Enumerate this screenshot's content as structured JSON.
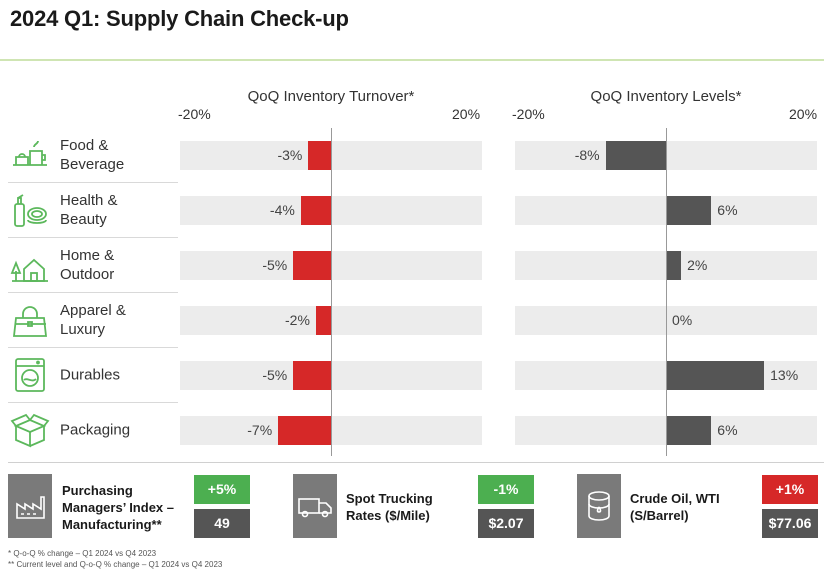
{
  "title": "2024 Q1: Supply Chain Check-up",
  "colors": {
    "negative": "#d62828",
    "positive": "#555555",
    "neutral_bar": "#555555",
    "track": "#ececec",
    "green": "#4caf50",
    "accent_rule": "#cfe5b3",
    "icon_stroke": "#5cb85c"
  },
  "categories": [
    {
      "label": "Food &\nBeverage",
      "icon": "food-beverage-icon"
    },
    {
      "label": "Health &\nBeauty",
      "icon": "health-beauty-icon"
    },
    {
      "label": "Home &\nOutdoor",
      "icon": "home-outdoor-icon"
    },
    {
      "label": "Apparel &\nLuxury",
      "icon": "apparel-luxury-icon"
    },
    {
      "label": "Durables",
      "icon": "durables-icon"
    },
    {
      "label": "Packaging",
      "icon": "packaging-icon"
    }
  ],
  "chart_data": [
    {
      "type": "bar",
      "orientation": "horizontal",
      "title": "QoQ Inventory Turnover*",
      "xlim": [
        -20,
        20
      ],
      "tick_labels": [
        "-20%",
        "20%"
      ],
      "categories": [
        "Food & Beverage",
        "Health & Beauty",
        "Home & Outdoor",
        "Apparel & Luxury",
        "Durables",
        "Packaging"
      ],
      "values": [
        -3,
        -4,
        -5,
        -2,
        -5,
        -7
      ],
      "data_labels": [
        "-3%",
        "-4%",
        "-5%",
        "-2%",
        "-5%",
        "-7%"
      ],
      "bar_color": "#d62828"
    },
    {
      "type": "bar",
      "orientation": "horizontal",
      "title": "QoQ Inventory Levels*",
      "xlim": [
        -20,
        20
      ],
      "tick_labels": [
        "-20%",
        "20%"
      ],
      "categories": [
        "Food & Beverage",
        "Health & Beauty",
        "Home & Outdoor",
        "Apparel & Luxury",
        "Durables",
        "Packaging"
      ],
      "values": [
        -8,
        6,
        2,
        0,
        13,
        6
      ],
      "data_labels": [
        "-8%",
        "6%",
        "2%",
        "0%",
        "13%",
        "6%"
      ],
      "bar_color": "#555555"
    }
  ],
  "kpis": [
    {
      "label": "Purchasing Managers’ Index – Manufacturing**",
      "change": "+5%",
      "change_color": "#4caf50",
      "value": "49",
      "icon": "factory-icon"
    },
    {
      "label": "Spot Trucking Rates ($/Mile)",
      "change": "-1%",
      "change_color": "#4caf50",
      "value": "$2.07",
      "icon": "truck-icon"
    },
    {
      "label": "Crude Oil, WTI (S/Barrel)",
      "change": "+1%",
      "change_color": "#d62828",
      "value": "$77.06",
      "icon": "oil-barrel-icon"
    }
  ],
  "footnotes": [
    "* Q-o-Q % change – Q1 2024 vs Q4 2023",
    "** Current level and Q-o-Q % change – Q1 2024 vs Q4 2023"
  ]
}
